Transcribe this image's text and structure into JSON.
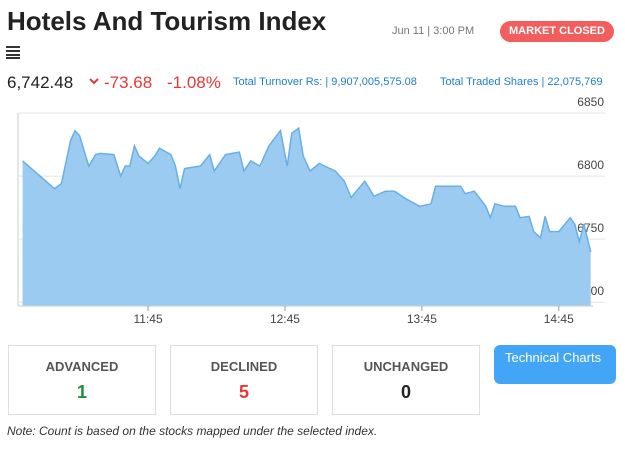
{
  "header": {
    "title": "Hotels And Tourism Index",
    "datetime": "Jun 11 | 3:00 PM",
    "status": "MARKET CLOSED"
  },
  "quote": {
    "value": "6,742.48",
    "change": "-73.68",
    "change_pct": "-1.08%",
    "turnover": "Total Turnover Rs: | 9,907,005,575.08",
    "traded_shares": "Total Traded Shares | 22,075,769"
  },
  "chart_data": {
    "type": "area",
    "color": "#6aaee6",
    "x": [
      "10:50",
      "11:04",
      "11:07",
      "11:11",
      "11:13",
      "11:15",
      "11:19",
      "11:22",
      "11:24",
      "11:30",
      "11:33",
      "11:35",
      "11:37",
      "11:39",
      "11:41",
      "11:45",
      "11:48",
      "11:50",
      "11:55",
      "11:57",
      "11:59",
      "12:01",
      "12:08",
      "12:12",
      "12:14",
      "12:19",
      "12:25",
      "12:27",
      "12:30",
      "12:34",
      "12:38",
      "12:43",
      "12:46",
      "12:48",
      "12:51",
      "12:53",
      "12:56",
      "13:00",
      "13:07",
      "13:11",
      "13:14",
      "13:20",
      "13:24",
      "13:29",
      "13:33",
      "13:38",
      "13:44",
      "13:49",
      "13:51",
      "13:57",
      "14:02",
      "14:04",
      "14:08",
      "14:13",
      "14:15",
      "14:17",
      "14:21",
      "14:26",
      "14:28",
      "14:32",
      "14:34",
      "14:37",
      "14:39",
      "14:41",
      "14:45",
      "14:50",
      "14:52",
      "14:54",
      "14:56",
      "14:59"
    ],
    "values": [
      6812,
      6790,
      6794,
      6828,
      6836,
      6832,
      6808,
      6817,
      6818,
      6817,
      6800,
      6808,
      6808,
      6824,
      6816,
      6810,
      6816,
      6822,
      6817,
      6808,
      6790,
      6806,
      6808,
      6817,
      6804,
      6817,
      6819,
      6804,
      6812,
      6808,
      6824,
      6836,
      6808,
      6834,
      6838,
      6816,
      6804,
      6810,
      6804,
      6796,
      6783,
      6796,
      6784,
      6788,
      6788,
      6782,
      6776,
      6778,
      6792,
      6792,
      6792,
      6786,
      6788,
      6776,
      6767,
      6778,
      6776,
      6776,
      6767,
      6768,
      6756,
      6751,
      6768,
      6756,
      6756,
      6767,
      6762,
      6748,
      6762,
      6740
    ],
    "xlim": [
      "10:48",
      "15:00"
    ],
    "xticks": [
      "11:45",
      "12:45",
      "13:45",
      "14:45"
    ],
    "ylim": [
      6697,
      6850
    ],
    "yticks": [
      6700,
      6750,
      6800,
      6850
    ],
    "grid": true
  },
  "stats": {
    "advanced": {
      "label": "ADVANCED",
      "value": 1
    },
    "declined": {
      "label": "DECLINED",
      "value": 5
    },
    "unchanged": {
      "label": "UNCHANGED",
      "value": 0
    }
  },
  "button": "Technical Charts",
  "note": "Note: Count is based on the stocks mapped under the selected index."
}
